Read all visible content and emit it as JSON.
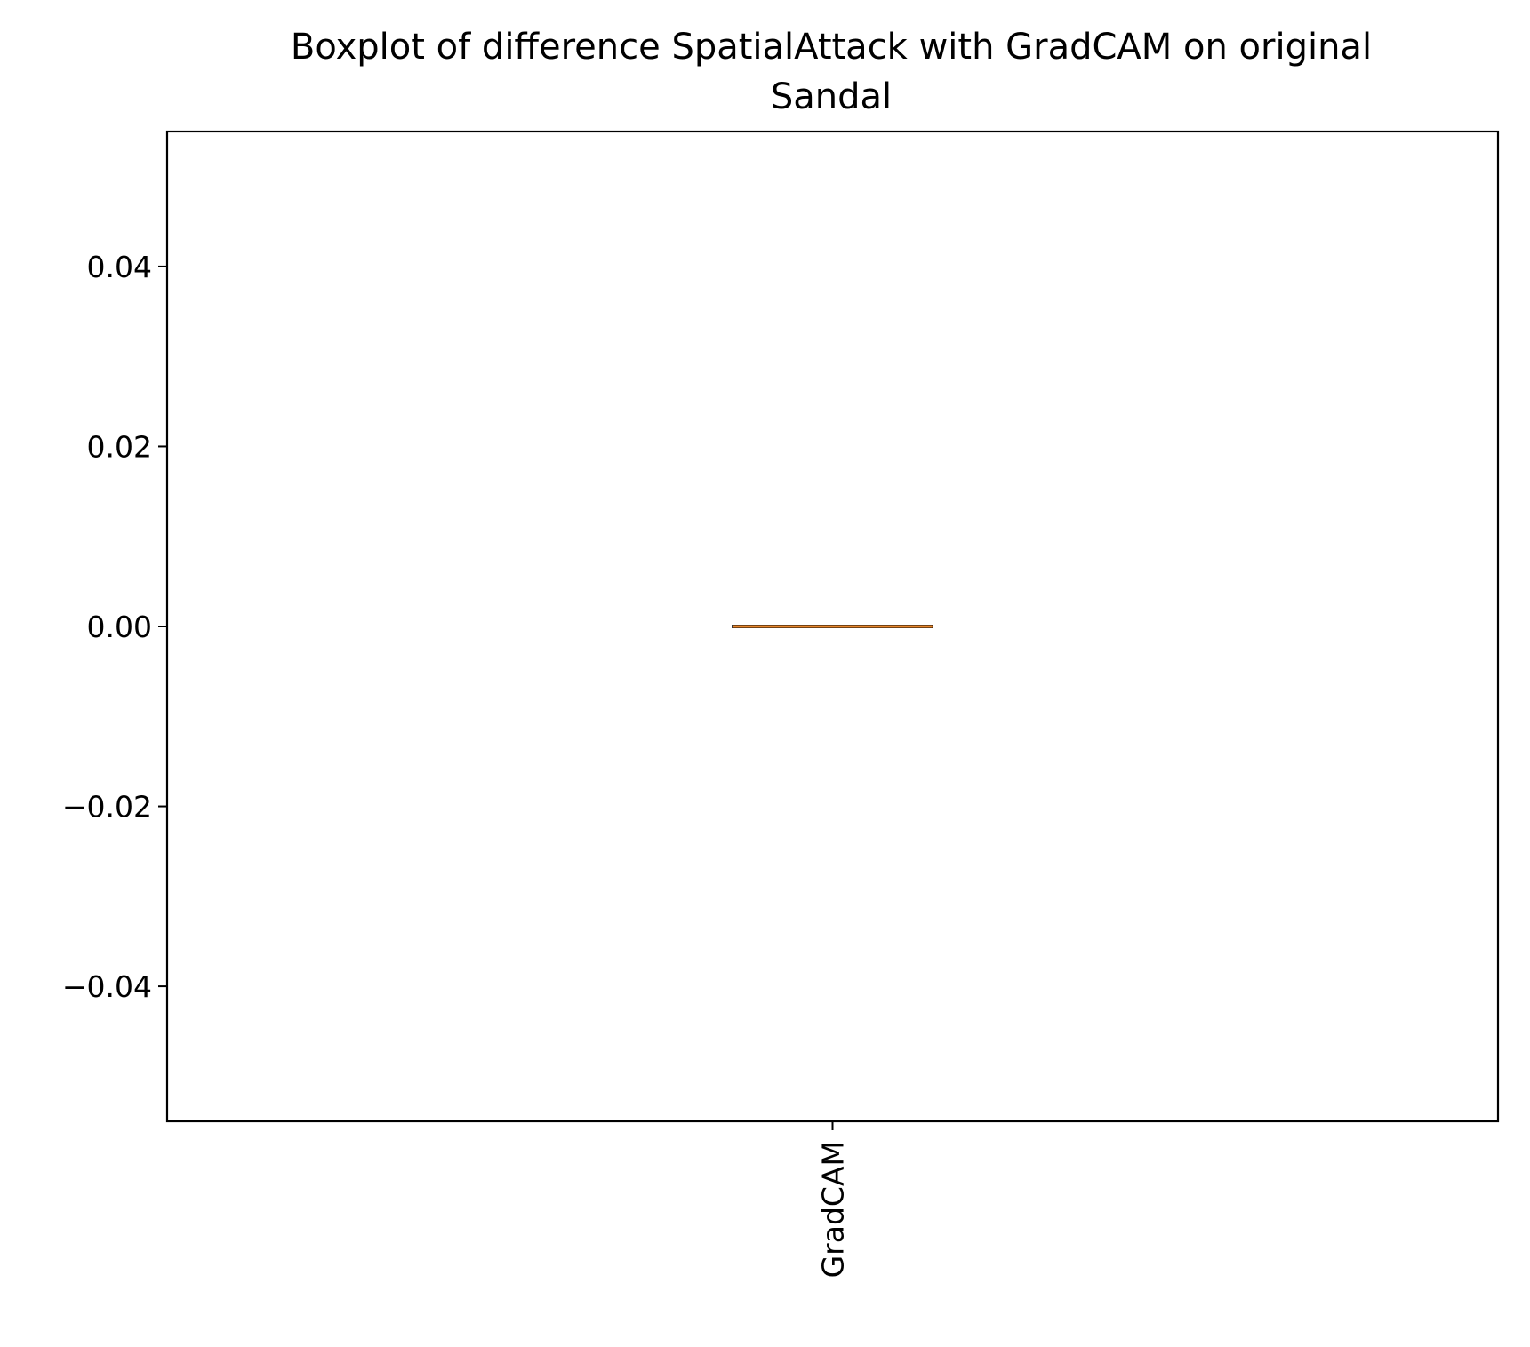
{
  "chart_data": {
    "type": "boxplot",
    "title": "Boxplot of difference SpatialAttack with GradCAM on original\nSandal",
    "title_lines": [
      "Boxplot of difference SpatialAttack with GradCAM on original",
      "Sandal"
    ],
    "xlabel": "",
    "ylabel": "",
    "categories": [
      "GradCAM"
    ],
    "boxes": [
      {
        "category": "GradCAM",
        "min": 0.0,
        "q1": 0.0,
        "median": 0.0,
        "q3": 0.0,
        "max": 0.0,
        "outliers": []
      }
    ],
    "ylim": [
      -0.055,
      0.055
    ],
    "yticks": [
      -0.04,
      -0.02,
      0.0,
      0.02,
      0.04
    ],
    "ytick_labels": [
      "−0.04",
      "−0.02",
      "0.00",
      "0.02",
      "0.04"
    ],
    "xtick_labels": [
      "GradCAM"
    ],
    "xtick_rotation": "vertical",
    "grid": false,
    "legend": "none",
    "colors": {
      "median": "#e8862c",
      "box": "#000000",
      "axes": "#000000",
      "background": "#ffffff"
    }
  }
}
